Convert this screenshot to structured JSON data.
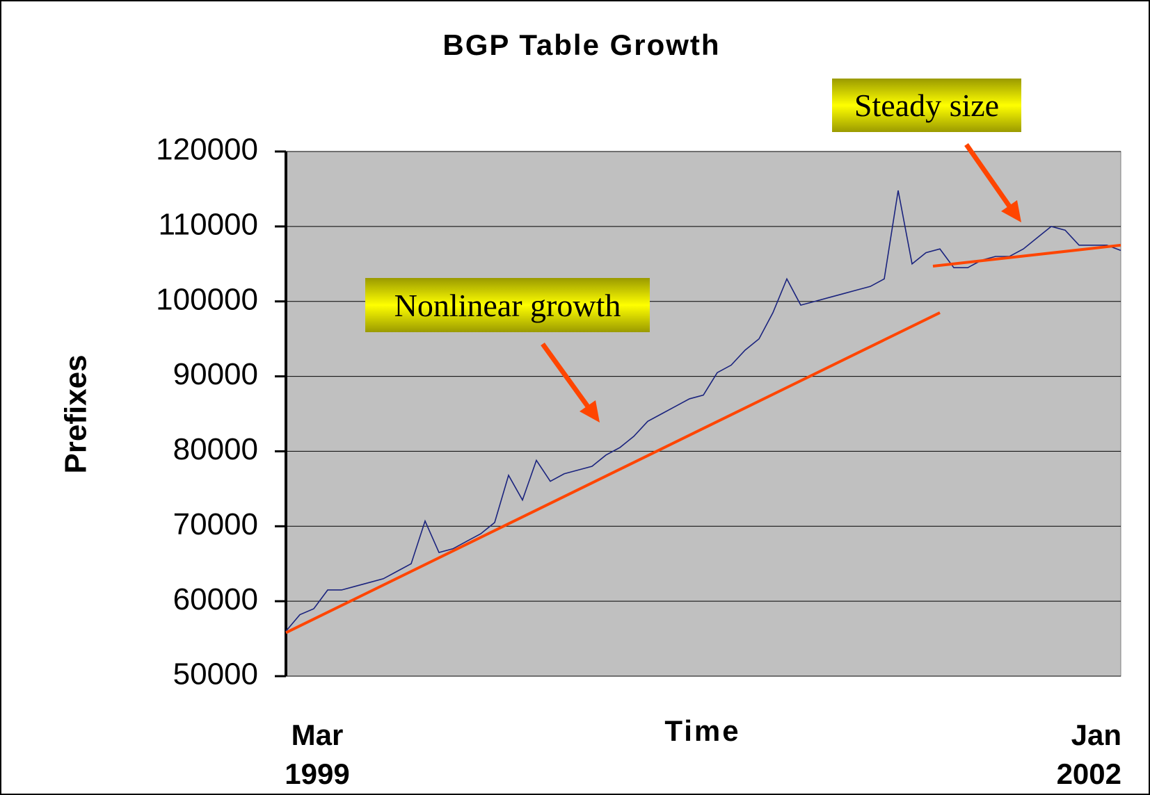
{
  "chart_data": {
    "type": "line",
    "title": "BGP Table Growth",
    "x_label": "Time",
    "y_label": "Prefixes",
    "categories": [
      "Mar 1999",
      null,
      null,
      null,
      null,
      null,
      null,
      null,
      null,
      null,
      null,
      null,
      null,
      null,
      null,
      null,
      null,
      null,
      null,
      null,
      null,
      null,
      null,
      null,
      null,
      null,
      null,
      null,
      null,
      null,
      null,
      null,
      null,
      null,
      null,
      null,
      null,
      null,
      null,
      null,
      null,
      null,
      null,
      null,
      null,
      null,
      null,
      null,
      null,
      null,
      null,
      null,
      null,
      null,
      null,
      null,
      null,
      null,
      null,
      null,
      "Jan 2002"
    ],
    "series": [
      {
        "color": "#1a237e",
        "values": [
          56000,
          58200,
          59000,
          61500,
          61500,
          62000,
          62500,
          63000,
          64000,
          65000,
          70700,
          66500,
          67000,
          68000,
          69000,
          70500,
          76800,
          73500,
          78800,
          76000,
          77000,
          77500,
          78000,
          79500,
          80500,
          82000,
          84000,
          85000,
          86000,
          87000,
          87500,
          90500,
          91500,
          93500,
          95000,
          98500,
          103000,
          99500,
          100000,
          100500,
          101000,
          101500,
          102000,
          103000,
          114800,
          105000,
          106500,
          107000,
          104500,
          104500,
          105500,
          106000,
          106000,
          107000,
          108500,
          110000,
          109500,
          107500,
          107500,
          107500,
          106800
        ]
      }
    ],
    "trend_lines": [
      {
        "color": "#ff4500",
        "from": [
          0,
          55800
        ],
        "to": [
          47,
          98500
        ]
      },
      {
        "color": "#ff4500",
        "from": [
          46.5,
          104700
        ],
        "to": [
          60,
          107500
        ]
      }
    ],
    "annotations": [
      {
        "text": "Nonlinear growth"
      },
      {
        "text": "Steady size"
      }
    ],
    "ylim": [
      50000,
      120000
    ],
    "yticks": [
      50000,
      60000,
      70000,
      80000,
      90000,
      100000,
      110000,
      120000
    ],
    "grid": true,
    "plot_background": "#c0c0c0"
  }
}
